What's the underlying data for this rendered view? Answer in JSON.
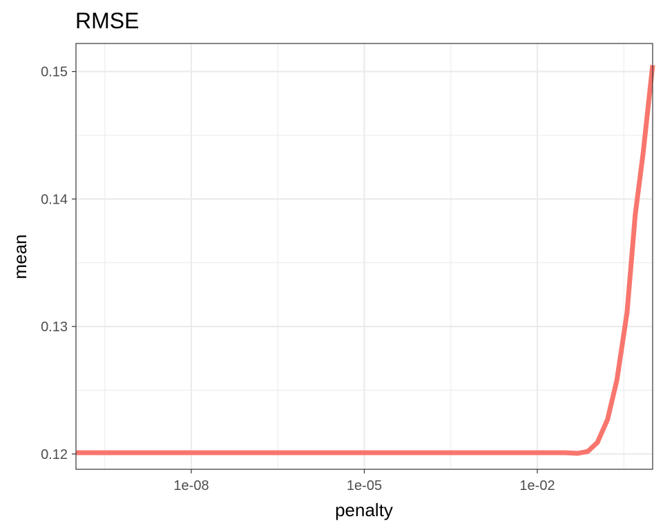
{
  "chart_data": {
    "type": "line",
    "title": "RMSE",
    "xlabel": "penalty",
    "ylabel": "mean",
    "x_scale": "log10",
    "xlim": [
      1e-10,
      1
    ],
    "ylim": [
      0.1188,
      0.1522
    ],
    "x_ticks": [
      {
        "value": 1e-08,
        "label": "1e-08"
      },
      {
        "value": 1e-05,
        "label": "1e-05"
      },
      {
        "value": 0.01,
        "label": "1e-02"
      }
    ],
    "y_ticks": [
      {
        "value": 0.12,
        "label": "0.12"
      },
      {
        "value": 0.13,
        "label": "0.13"
      },
      {
        "value": 0.14,
        "label": "0.14"
      },
      {
        "value": 0.15,
        "label": "0.15"
      }
    ],
    "grid": true,
    "legend": "none",
    "colors": {
      "line": "#F8766D",
      "grid": "#EBEBEB",
      "border": "#333333"
    },
    "series": [
      {
        "x": [
          1e-10,
          1e-09,
          1e-08,
          1e-07,
          1e-06,
          1e-05,
          0.0001,
          0.001,
          0.01,
          0.02,
          0.03,
          0.05,
          0.075,
          0.11,
          0.165,
          0.24,
          0.36,
          0.5,
          0.68,
          1
        ],
        "values": [
          0.1201,
          0.1201,
          0.1201,
          0.1201,
          0.1201,
          0.1201,
          0.1201,
          0.1201,
          0.1201,
          0.1201,
          0.1201,
          0.12005,
          0.1202,
          0.1209,
          0.1227,
          0.1258,
          0.1311,
          0.1388,
          0.1435,
          0.1505
        ]
      }
    ]
  }
}
